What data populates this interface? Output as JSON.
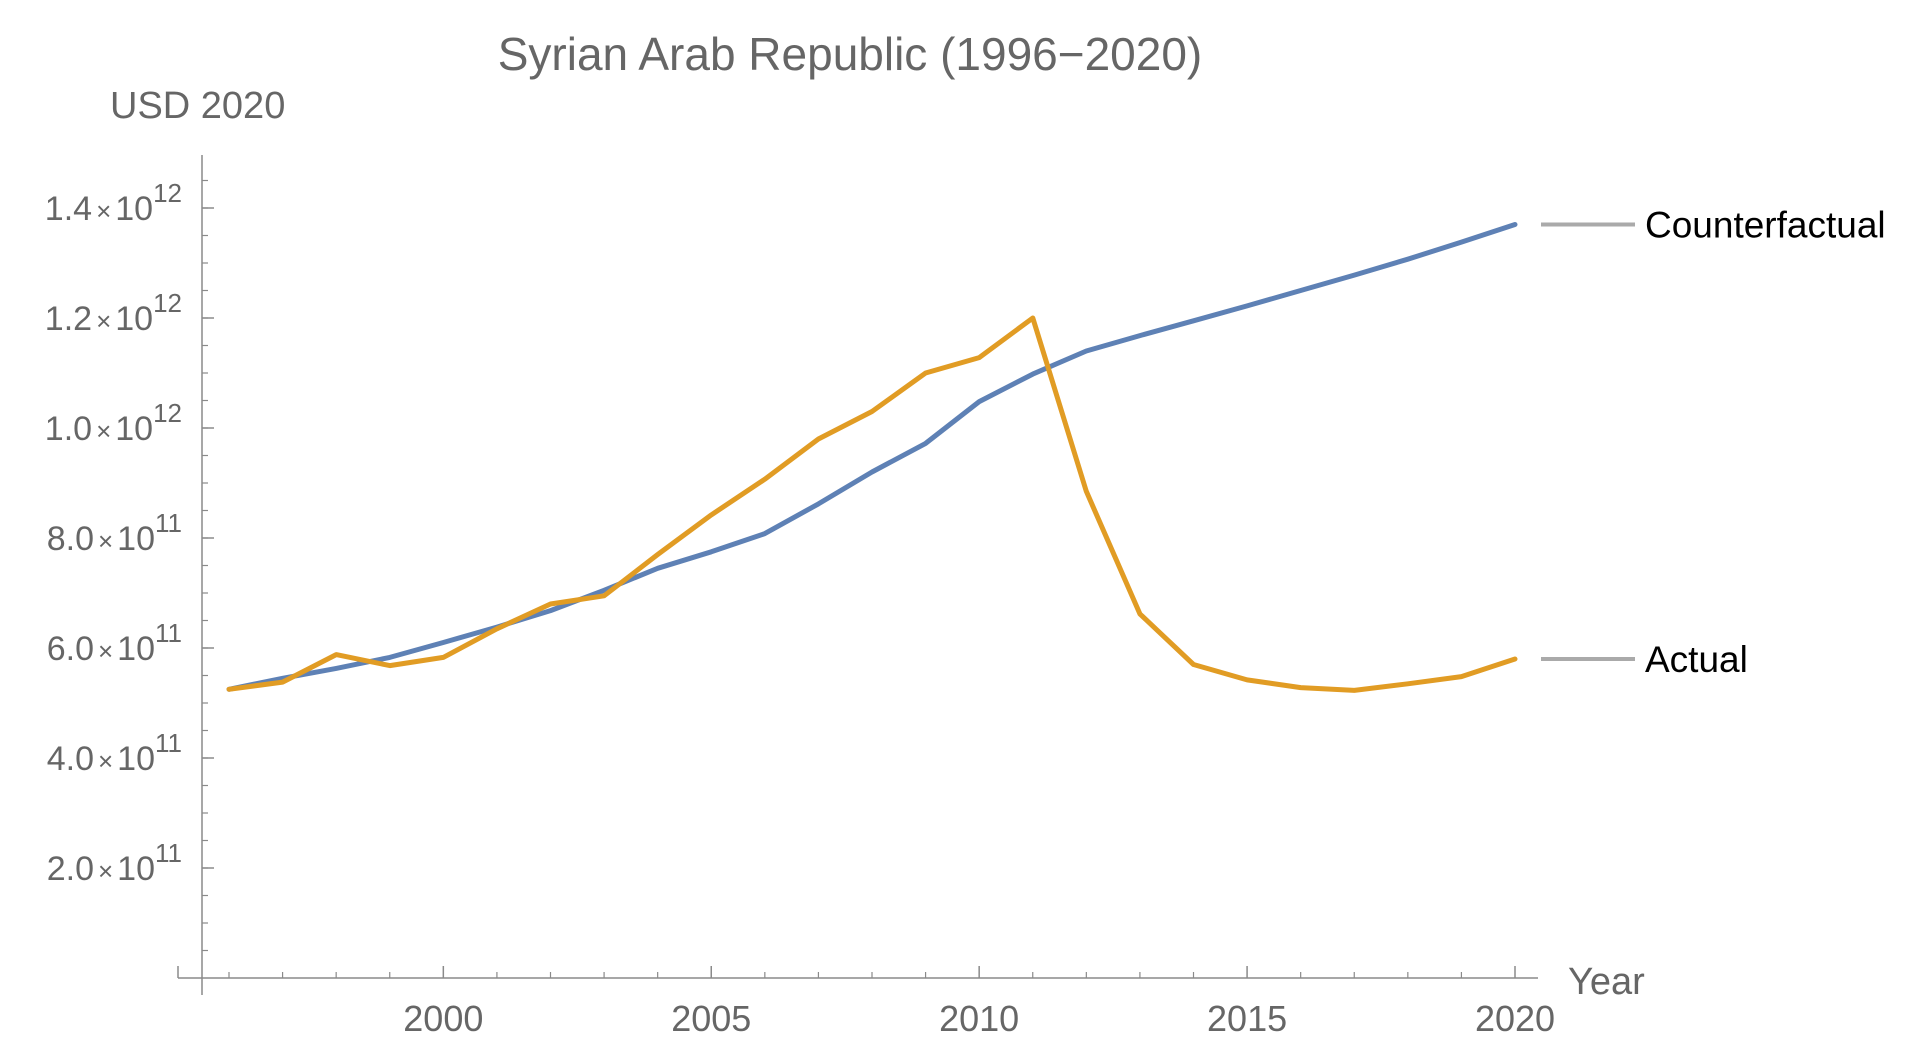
{
  "chart_data": {
    "type": "line",
    "title": "Syrian Arab Republic (1996−2020)",
    "xlabel": "Year",
    "ylabel": "USD 2020",
    "xlim": [
      1995.5,
      2020.5
    ],
    "ylim": [
      0,
      1500000000000.0
    ],
    "x_ticks": [
      2000,
      2005,
      2010,
      2015,
      2020
    ],
    "x_tick_labels": [
      "2000",
      "2005",
      "2010",
      "2015",
      "2020"
    ],
    "y_ticks": [
      {
        "value": 200000000000.0,
        "mantissa": "2.0",
        "times": "×",
        "base": "10",
        "exp": "11"
      },
      {
        "value": 400000000000.0,
        "mantissa": "4.0",
        "times": "×",
        "base": "10",
        "exp": "11"
      },
      {
        "value": 600000000000.0,
        "mantissa": "6.0",
        "times": "×",
        "base": "10",
        "exp": "11"
      },
      {
        "value": 800000000000.0,
        "mantissa": "8.0",
        "times": "×",
        "base": "10",
        "exp": "11"
      },
      {
        "value": 1000000000000.0,
        "mantissa": "1.0",
        "times": "×",
        "base": "10",
        "exp": "12"
      },
      {
        "value": 1200000000000.0,
        "mantissa": "1.2",
        "times": "×",
        "base": "10",
        "exp": "12"
      },
      {
        "value": 1400000000000.0,
        "mantissa": "1.4",
        "times": "×",
        "base": "10",
        "exp": "12"
      }
    ],
    "x": [
      1996,
      1997,
      1998,
      1999,
      2000,
      2001,
      2002,
      2003,
      2004,
      2005,
      2006,
      2007,
      2008,
      2009,
      2010,
      2011,
      2012,
      2013,
      2014,
      2015,
      2016,
      2017,
      2018,
      2019,
      2020
    ],
    "series": [
      {
        "name": "Counterfactual",
        "color": "#5e81b5",
        "values": [
          525000000000.0,
          545000000000.0,
          563000000000.0,
          583000000000.0,
          610000000000.0,
          638000000000.0,
          668000000000.0,
          705000000000.0,
          745000000000.0,
          775000000000.0,
          808000000000.0,
          862000000000.0,
          920000000000.0,
          972000000000.0,
          1048000000000.0,
          1098000000000.0,
          1140000000000.0,
          1168000000000.0,
          1195000000000.0,
          1222000000000.0,
          1250000000000.0,
          1278000000000.0,
          1307000000000.0,
          1338000000000.0,
          1370000000000.0
        ]
      },
      {
        "name": "Actual",
        "color": "#e19c24",
        "values": [
          525000000000.0,
          538000000000.0,
          588000000000.0,
          568000000000.0,
          583000000000.0,
          635000000000.0,
          680000000000.0,
          695000000000.0,
          770000000000.0,
          842000000000.0,
          907000000000.0,
          980000000000.0,
          1030000000000.0,
          1100000000000.0,
          1128000000000.0,
          1200000000000.0,
          885000000000.0,
          662000000000.0,
          570000000000.0,
          542000000000.0,
          528000000000.0,
          523000000000.0,
          535000000000.0,
          548000000000.0,
          580000000000.0
        ]
      }
    ]
  }
}
